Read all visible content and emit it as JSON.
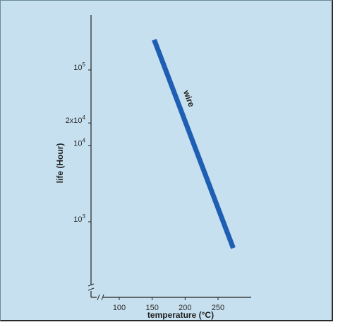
{
  "chart_data": {
    "type": "line",
    "xlabel": "temperature (°C)",
    "ylabel": "life (Hour)",
    "x_ticks": [
      100,
      150,
      200,
      250
    ],
    "x_tick_labels": [
      "100",
      "150",
      "200",
      "250"
    ],
    "y_ticks": [
      {
        "value": 1000,
        "base": "10",
        "exp": "3",
        "mult": ""
      },
      {
        "value": 10000,
        "base": "10",
        "exp": "4",
        "mult": ""
      },
      {
        "value": 20000,
        "base": "10",
        "exp": "4",
        "mult": "2x"
      },
      {
        "value": 100000,
        "base": "10",
        "exp": "5",
        "mult": ""
      }
    ],
    "y_scale": "log",
    "xlim": [
      70,
      290
    ],
    "ylim": [
      100,
      400000
    ],
    "axis_break": true,
    "grid": false,
    "series": [
      {
        "name": "wire",
        "color": "#1f5fb3",
        "x": [
          153,
          273
        ],
        "y": [
          250000,
          450
        ]
      }
    ],
    "background_color": "#c6e0ef"
  }
}
